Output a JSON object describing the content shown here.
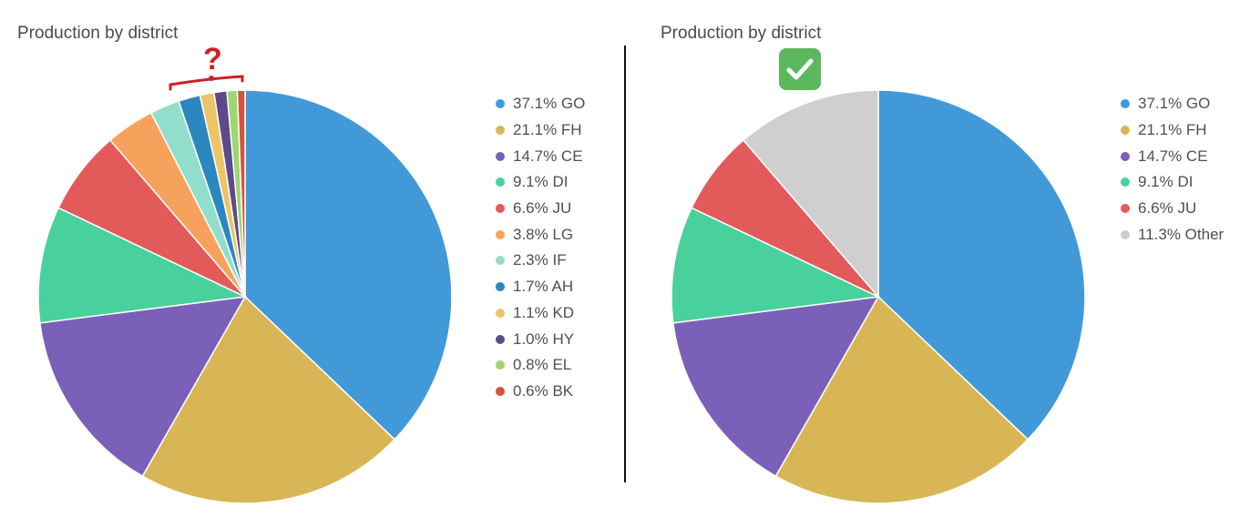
{
  "chart_data": [
    {
      "type": "pie",
      "title": "Production by district",
      "slices": [
        {
          "label": "GO",
          "value": 37.1,
          "color": "#4299d8"
        },
        {
          "label": "FH",
          "value": 21.1,
          "color": "#d9b655"
        },
        {
          "label": "CE",
          "value": 14.7,
          "color": "#7a60b8"
        },
        {
          "label": "DI",
          "value": 9.1,
          "color": "#48d19c"
        },
        {
          "label": "JU",
          "value": 6.6,
          "color": "#e35a5b"
        },
        {
          "label": "LG",
          "value": 3.8,
          "color": "#f7a25c"
        },
        {
          "label": "IF",
          "value": 2.3,
          "color": "#92ddcc"
        },
        {
          "label": "AH",
          "value": 1.7,
          "color": "#2a88be"
        },
        {
          "label": "KD",
          "value": 1.1,
          "color": "#eec566"
        },
        {
          "label": "HY",
          "value": 1.0,
          "color": "#5e4a8a"
        },
        {
          "label": "EL",
          "value": 0.8,
          "color": "#9ed66f"
        },
        {
          "label": "BK",
          "value": 0.6,
          "color": "#d6513e"
        }
      ],
      "legend_entries": [
        "37.1% GO",
        "21.1% FH",
        "14.7% CE",
        "9.1% DI",
        "6.6% JU",
        "3.8% LG",
        "2.3% IF",
        "1.7% AH",
        "1.1% KD",
        "1.0% HY",
        "0.8% EL",
        "0.6% BK"
      ],
      "legend_position": "right"
    },
    {
      "type": "pie",
      "title": "Production by district",
      "slices": [
        {
          "label": "GO",
          "value": 37.1,
          "color": "#4299d8"
        },
        {
          "label": "FH",
          "value": 21.1,
          "color": "#d9b655"
        },
        {
          "label": "CE",
          "value": 14.7,
          "color": "#7a60b8"
        },
        {
          "label": "DI",
          "value": 9.1,
          "color": "#48d19c"
        },
        {
          "label": "JU",
          "value": 6.6,
          "color": "#e35a5b"
        },
        {
          "label": "Other",
          "value": 11.3,
          "color": "#cfcfcf"
        }
      ],
      "legend_entries": [
        "37.1% GO",
        "21.1% FH",
        "14.7% CE",
        "9.1% DI",
        "6.6% JU",
        "11.3% Other"
      ],
      "legend_position": "right"
    }
  ],
  "annotations": {
    "question_mark": "?",
    "check_icon": "check-mark-icon",
    "annotation_color": "#cc2222",
    "check_color": "#5cb85c"
  }
}
